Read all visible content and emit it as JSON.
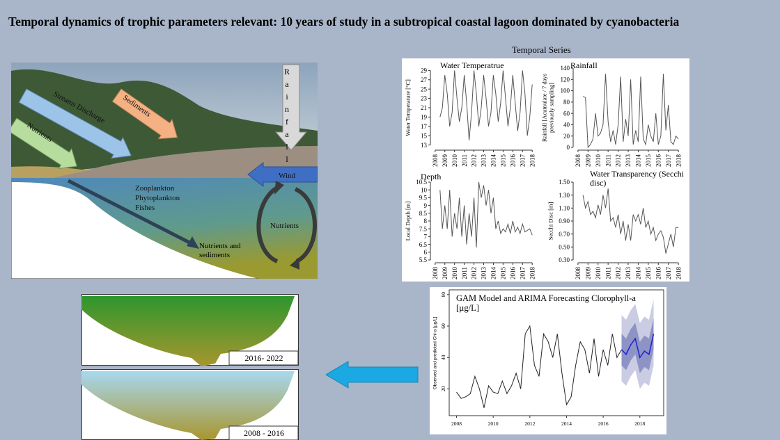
{
  "title": "Temporal dynamics of trophic parameters relevant: 10 years of study in a subtropical coastal lagoon dominated by cyanobacteria",
  "diagram": {
    "rainfall": "Rainfall",
    "sediments": "Sediments",
    "streams": "Streams Discharge",
    "nutrients_in": "Nutrients",
    "wind": "Wind",
    "zooplankton": "Zooplankton",
    "phytoplankton": "Phytoplankton",
    "fishes": "Fishes",
    "nutrients_cycle": "Nutrients",
    "nutrients_out": "Nutrients and sediments"
  },
  "series_heading": "Temporal Series",
  "scenarios": [
    "2016- 2022",
    "2008 - 2016"
  ],
  "chart_data": [
    {
      "type": "line",
      "title": "Water Temperatrue",
      "y_label": "Water Temperature [°C]",
      "color": "#555555",
      "x": [
        2008.5,
        2008.75,
        2009,
        2009.25,
        2009.5,
        2009.75,
        2010,
        2010.25,
        2010.5,
        2010.75,
        2011,
        2011.25,
        2011.5,
        2011.75,
        2012,
        2012.25,
        2012.5,
        2012.75,
        2013,
        2013.25,
        2013.5,
        2013.75,
        2014,
        2014.25,
        2014.5,
        2014.75,
        2015,
        2015.25,
        2015.5,
        2015.75,
        2016,
        2016.25,
        2016.5,
        2016.75,
        2017,
        2017.25,
        2017.5,
        2017.75,
        2018
      ],
      "values": [
        19,
        21,
        28,
        24,
        17,
        20,
        29,
        23,
        18,
        21,
        28,
        22,
        14,
        20,
        29,
        24,
        17,
        21,
        28,
        23,
        17,
        20,
        28,
        24,
        18,
        22,
        29,
        23,
        17,
        21,
        28,
        22,
        16,
        20,
        29,
        24,
        15,
        19,
        26
      ],
      "xlim": [
        2007.8,
        2018.2
      ],
      "xticks": [
        2008,
        2009,
        2010,
        2011,
        2012,
        2013,
        2014,
        2015,
        2016,
        2017,
        2018
      ],
      "ylim": [
        12.5,
        29.5
      ],
      "yticks": [
        13,
        15,
        17,
        19,
        21,
        23,
        25,
        27,
        29
      ]
    },
    {
      "type": "line",
      "title": "Rainfall",
      "y_label": "Rainfall [Acumulate / 7 days previously sampling]",
      "color": "#555555",
      "x": [
        2008.5,
        2008.75,
        2009,
        2009.25,
        2009.5,
        2009.75,
        2010,
        2010.25,
        2010.5,
        2010.75,
        2011,
        2011.25,
        2011.5,
        2011.75,
        2012,
        2012.25,
        2012.5,
        2012.75,
        2013,
        2013.25,
        2013.5,
        2013.75,
        2014,
        2014.25,
        2014.5,
        2014.75,
        2015,
        2015.25,
        2015.5,
        2015.75,
        2016,
        2016.25,
        2016.5,
        2016.75,
        2017,
        2017.25,
        2017.5,
        2017.75,
        2018
      ],
      "values": [
        90,
        88,
        0,
        5,
        15,
        60,
        20,
        25,
        40,
        130,
        45,
        10,
        30,
        5,
        40,
        125,
        10,
        50,
        20,
        120,
        5,
        30,
        10,
        125,
        15,
        5,
        40,
        20,
        10,
        60,
        5,
        20,
        130,
        30,
        75,
        10,
        5,
        20,
        15
      ],
      "xlim": [
        2007.8,
        2018.2
      ],
      "xticks": [
        2008,
        2009,
        2010,
        2011,
        2012,
        2013,
        2014,
        2015,
        2016,
        2017,
        2018
      ],
      "ylim": [
        0,
        140
      ],
      "yticks": [
        0,
        20,
        40,
        60,
        80,
        100,
        120,
        140
      ]
    },
    {
      "type": "line",
      "title": "Depth",
      "y_label": "Local Depth [m]",
      "color": "#555555",
      "x": [
        2008.5,
        2008.75,
        2009,
        2009.25,
        2009.5,
        2009.75,
        2010,
        2010.25,
        2010.5,
        2010.75,
        2011,
        2011.25,
        2011.5,
        2011.75,
        2012,
        2012.25,
        2012.5,
        2012.75,
        2013,
        2013.25,
        2013.5,
        2013.75,
        2014,
        2014.25,
        2014.5,
        2014.75,
        2015,
        2015.25,
        2015.5,
        2015.75,
        2016,
        2016.25,
        2016.5,
        2016.75,
        2017,
        2017.25,
        2017.5,
        2017.75,
        2018
      ],
      "values": [
        10,
        7.5,
        9,
        7.5,
        10,
        7,
        8.5,
        7.5,
        9.5,
        7,
        9,
        6.5,
        8.5,
        7,
        9.5,
        6.3,
        10.5,
        9.5,
        10.3,
        9,
        10,
        8.5,
        9.5,
        7.5,
        8,
        7.2,
        7.5,
        7.3,
        7.8,
        7.2,
        8,
        7.3,
        7.6,
        7.2,
        7.8,
        7.3,
        7.4,
        7.5,
        7.1
      ],
      "xlim": [
        2007.8,
        2018.2
      ],
      "xticks": [
        2008,
        2009,
        2010,
        2011,
        2012,
        2013,
        2014,
        2015,
        2016,
        2017,
        2018
      ],
      "ylim": [
        5.5,
        10.5
      ],
      "yticks": [
        5.5,
        6,
        6.5,
        7,
        7.5,
        8,
        8.5,
        9,
        9.5,
        10,
        10.5
      ]
    },
    {
      "type": "line",
      "title": "Water Transparency (Secchi disc)",
      "y_label": "Secchi Disc [m]",
      "color": "#555555",
      "x": [
        2008.5,
        2008.75,
        2009,
        2009.25,
        2009.5,
        2009.75,
        2010,
        2010.25,
        2010.5,
        2010.75,
        2011,
        2011.25,
        2011.5,
        2011.75,
        2012,
        2012.25,
        2012.5,
        2012.75,
        2013,
        2013.25,
        2013.5,
        2013.75,
        2014,
        2014.25,
        2014.5,
        2014.75,
        2015,
        2015.25,
        2015.5,
        2015.75,
        2016,
        2016.25,
        2016.5,
        2016.75,
        2017,
        2017.25,
        2017.5,
        2017.75,
        2018
      ],
      "values": [
        1.3,
        1.1,
        1.2,
        1.0,
        1.05,
        0.95,
        1.15,
        1.0,
        1.3,
        1.1,
        1.4,
        0.9,
        0.95,
        0.8,
        1.0,
        0.7,
        0.9,
        0.6,
        0.85,
        0.6,
        1.0,
        0.9,
        1.0,
        0.85,
        1.1,
        0.8,
        0.9,
        0.7,
        0.8,
        0.6,
        0.7,
        0.75,
        0.65,
        0.4,
        0.55,
        0.7,
        0.5,
        0.8,
        0.8
      ],
      "xlim": [
        2007.8,
        2018.2
      ],
      "xticks": [
        2008,
        2009,
        2010,
        2011,
        2012,
        2013,
        2014,
        2015,
        2016,
        2017,
        2018
      ],
      "ylim": [
        0.3,
        1.5
      ],
      "yticks": [
        {
          "value": 0.3,
          "label": "0.30"
        },
        {
          "value": 0.5,
          "label": "0.50"
        },
        {
          "value": 0.7,
          "label": "0.70"
        },
        {
          "value": 0.9,
          "label": "0.90"
        },
        {
          "value": 1.1,
          "label": "1.10"
        },
        {
          "value": 1.3,
          "label": "1.30"
        },
        {
          "value": 1.5,
          "label": "1.50"
        }
      ]
    },
    {
      "type": "forecast",
      "title": "GAM Model and ARIMA Forecasting Clorophyll-a [µg/L]",
      "y_label": "Observed and predicted Chl-a [µg/L]",
      "color": "#222222",
      "x": [
        2008,
        2008.25,
        2008.5,
        2008.75,
        2009,
        2009.25,
        2009.5,
        2009.75,
        2010,
        2010.25,
        2010.5,
        2010.75,
        2011,
        2011.25,
        2011.5,
        2011.75,
        2012,
        2012.25,
        2012.5,
        2012.75,
        2013,
        2013.25,
        2013.5,
        2013.75,
        2014,
        2014.25,
        2014.5,
        2014.75,
        2015,
        2015.25,
        2015.5,
        2015.75,
        2016,
        2016.25,
        2016.5,
        2016.75,
        2017
      ],
      "values": [
        18,
        14,
        15,
        17,
        28,
        20,
        8,
        22,
        18,
        17,
        25,
        17,
        22,
        30,
        20,
        55,
        60,
        35,
        28,
        55,
        50,
        40,
        55,
        30,
        10,
        15,
        35,
        50,
        45,
        30,
        52,
        28,
        45,
        35,
        55,
        40,
        45
      ],
      "forecast": {
        "color": "#2020d0",
        "band80_color": "#8d93c4",
        "band95_color": "#c9cce2",
        "x": [
          2017,
          2017.25,
          2017.5,
          2017.75,
          2018,
          2018.25,
          2018.5,
          2018.75
        ],
        "values": [
          45,
          42,
          48,
          52,
          40,
          44,
          42,
          55
        ],
        "lower80": [
          35,
          32,
          38,
          42,
          30,
          34,
          32,
          45
        ],
        "upper80": [
          55,
          52,
          58,
          62,
          50,
          54,
          52,
          65
        ],
        "lower95": [
          25,
          22,
          28,
          32,
          20,
          24,
          22,
          35
        ],
        "upper95": [
          67,
          64,
          70,
          74,
          62,
          66,
          64,
          77
        ]
      },
      "xlim": [
        2007.6,
        2019.3
      ],
      "xticks": [
        2008,
        2010,
        2012,
        2014,
        2016,
        2018
      ],
      "ylim": [
        3,
        83
      ],
      "yticks": [
        20,
        40,
        60,
        80
      ]
    }
  ]
}
